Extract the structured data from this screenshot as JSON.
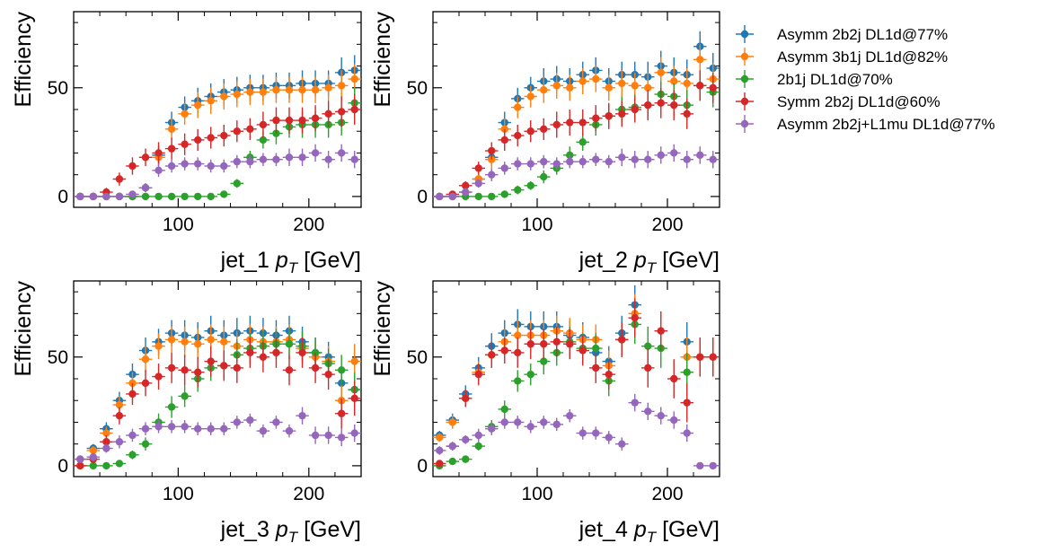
{
  "chart_data": [
    {
      "type": "scatter",
      "xlabel": "jet_1 pT [GeV]",
      "xlabel_var": "jet_1",
      "xlabel_unit": "[GeV]",
      "ylabel": "Efficiency",
      "xlim": [
        20,
        240
      ],
      "ylim": [
        -5,
        85
      ],
      "xticks": [
        100,
        200
      ],
      "yticks": [
        0,
        50
      ],
      "x": [
        25,
        35,
        45,
        55,
        65,
        75,
        85,
        95,
        105,
        115,
        125,
        135,
        145,
        155,
        165,
        175,
        185,
        195,
        205,
        215,
        225,
        235
      ],
      "series": [
        {
          "name": "Asymm 2b2j DL1d@77%",
          "color": "#1f77b4",
          "values": [
            0,
            0,
            0,
            0,
            0,
            4,
            19,
            34,
            41,
            44,
            46,
            48,
            49,
            50,
            50,
            51,
            51,
            52,
            52,
            52,
            57,
            58
          ],
          "errors": [
            0,
            0,
            0,
            0,
            0,
            2,
            4,
            5,
            5,
            6,
            6,
            6,
            6,
            6,
            6,
            6,
            6,
            6,
            6,
            6,
            7,
            7
          ]
        },
        {
          "name": "Asymm 3b1j DL1d@82%",
          "color": "#ff7f0e",
          "values": [
            0,
            0,
            0,
            0,
            0,
            4,
            18,
            31,
            38,
            42,
            44,
            46,
            47,
            48,
            48,
            49,
            49,
            49,
            49,
            50,
            51,
            54
          ],
          "errors": [
            0,
            0,
            0,
            0,
            0,
            2,
            4,
            5,
            5,
            6,
            6,
            6,
            6,
            6,
            6,
            6,
            6,
            6,
            6,
            6,
            7,
            7
          ]
        },
        {
          "name": "2b1j DL1d@70%",
          "color": "#2ca02c",
          "values": [
            0,
            0,
            0,
            0,
            0,
            0,
            0,
            0,
            0,
            0,
            0,
            1,
            6,
            18,
            26,
            29,
            32,
            33,
            33,
            33,
            34,
            43
          ],
          "errors": [
            0,
            0,
            0,
            0,
            0,
            0,
            0,
            0,
            0,
            0,
            0,
            1,
            2,
            3,
            4,
            5,
            5,
            6,
            6,
            6,
            6,
            7
          ]
        },
        {
          "name": "Symm 2b2j DL1d@60%",
          "color": "#d62728",
          "values": [
            0,
            0,
            2,
            8,
            14,
            18,
            20,
            22,
            24,
            26,
            27,
            28,
            30,
            31,
            33,
            35,
            35,
            35,
            36,
            38,
            39,
            40
          ],
          "errors": [
            0,
            0,
            2,
            3,
            4,
            4,
            5,
            5,
            5,
            5,
            5,
            5,
            5,
            5,
            6,
            6,
            6,
            6,
            6,
            6,
            7,
            7
          ]
        },
        {
          "name": "Asymm 2b2j+L1mu DL1d@77%",
          "color": "#9467bd",
          "values": [
            0,
            0,
            0,
            0,
            1,
            4,
            12,
            14,
            15,
            15,
            14,
            14,
            16,
            16,
            17,
            17,
            18,
            18,
            20,
            17,
            20,
            17
          ],
          "errors": [
            0,
            0,
            0,
            0,
            1,
            2,
            3,
            3,
            3,
            3,
            3,
            3,
            3,
            3,
            3,
            3,
            4,
            4,
            4,
            4,
            4,
            4
          ]
        }
      ]
    },
    {
      "type": "scatter",
      "xlabel": "jet_2 pT [GeV]",
      "xlabel_var": "jet_2",
      "xlabel_unit": "[GeV]",
      "ylabel": "Efficiency",
      "xlim": [
        20,
        240
      ],
      "ylim": [
        -5,
        85
      ],
      "xticks": [
        100,
        200
      ],
      "yticks": [
        0,
        50
      ],
      "x": [
        25,
        35,
        45,
        55,
        65,
        75,
        85,
        95,
        105,
        115,
        125,
        135,
        145,
        155,
        165,
        175,
        185,
        195,
        205,
        215,
        225,
        235
      ],
      "series": [
        {
          "name": "Asymm 2b2j DL1d@77%",
          "color": "#1f77b4",
          "values": [
            0,
            0,
            2,
            8,
            18,
            34,
            45,
            50,
            53,
            54,
            53,
            56,
            58,
            53,
            56,
            56,
            55,
            60,
            57,
            56,
            69,
            59
          ],
          "errors": [
            0,
            1,
            2,
            3,
            4,
            5,
            5,
            5,
            6,
            6,
            6,
            6,
            6,
            6,
            6,
            6,
            7,
            7,
            7,
            7,
            7,
            7
          ]
        },
        {
          "name": "Asymm 3b1j DL1d@82%",
          "color": "#ff7f0e",
          "values": [
            0,
            0,
            2,
            8,
            17,
            31,
            41,
            46,
            49,
            51,
            50,
            53,
            54,
            50,
            52,
            51,
            50,
            57,
            53,
            52,
            63,
            54
          ],
          "errors": [
            0,
            1,
            2,
            3,
            4,
            5,
            5,
            5,
            6,
            6,
            6,
            6,
            6,
            6,
            6,
            6,
            7,
            7,
            7,
            7,
            7,
            7
          ]
        },
        {
          "name": "2b1j DL1d@70%",
          "color": "#2ca02c",
          "values": [
            0,
            0,
            0,
            0,
            0,
            1,
            3,
            5,
            9,
            13,
            19,
            25,
            33,
            37,
            40,
            41,
            42,
            47,
            46,
            42,
            51,
            48
          ],
          "errors": [
            0,
            0,
            0,
            0,
            1,
            1,
            2,
            2,
            3,
            3,
            4,
            4,
            5,
            5,
            6,
            6,
            6,
            6,
            6,
            7,
            7,
            7
          ]
        },
        {
          "name": "Symm 2b2j DL1d@60%",
          "color": "#d62728",
          "values": [
            0,
            1,
            5,
            13,
            21,
            26,
            28,
            30,
            31,
            33,
            34,
            34,
            36,
            37,
            38,
            40,
            42,
            43,
            42,
            38,
            51,
            50
          ],
          "errors": [
            0,
            1,
            2,
            3,
            4,
            5,
            5,
            5,
            5,
            6,
            6,
            6,
            6,
            6,
            6,
            6,
            7,
            7,
            7,
            7,
            7,
            7
          ]
        },
        {
          "name": "Asymm 2b2j+L1mu DL1d@77%",
          "color": "#9467bd",
          "values": [
            0,
            0,
            2,
            6,
            10,
            13,
            15,
            15,
            16,
            15,
            16,
            16,
            17,
            16,
            18,
            17,
            17,
            19,
            20,
            17,
            19,
            17
          ],
          "errors": [
            0,
            1,
            2,
            2,
            3,
            3,
            3,
            3,
            3,
            3,
            3,
            3,
            3,
            3,
            4,
            4,
            4,
            4,
            4,
            4,
            4,
            4
          ]
        }
      ]
    },
    {
      "type": "scatter",
      "xlabel": "jet_3 pT [GeV]",
      "xlabel_var": "jet_3",
      "xlabel_unit": "[GeV]",
      "ylabel": "Efficiency",
      "xlim": [
        20,
        240
      ],
      "ylim": [
        -5,
        85
      ],
      "xticks": [
        100,
        200
      ],
      "yticks": [
        0,
        50
      ],
      "x": [
        25,
        35,
        45,
        55,
        65,
        75,
        85,
        95,
        105,
        115,
        125,
        135,
        145,
        155,
        165,
        175,
        185,
        195,
        205,
        215,
        225,
        235
      ],
      "series": [
        {
          "name": "Asymm 2b2j DL1d@77%",
          "color": "#1f77b4",
          "values": [
            3,
            8,
            17,
            30,
            42,
            53,
            57,
            61,
            60,
            59,
            62,
            60,
            61,
            62,
            61,
            60,
            62,
            57,
            52,
            50,
            38,
            35
          ],
          "errors": [
            1,
            2,
            3,
            4,
            5,
            6,
            6,
            6,
            7,
            7,
            7,
            7,
            7,
            7,
            7,
            7,
            7,
            7,
            7,
            7,
            7,
            8
          ]
        },
        {
          "name": "Asymm 3b1j DL1d@82%",
          "color": "#ff7f0e",
          "values": [
            3,
            7,
            15,
            28,
            38,
            49,
            55,
            58,
            57,
            56,
            58,
            57,
            55,
            58,
            57,
            57,
            58,
            54,
            50,
            48,
            30,
            48
          ],
          "errors": [
            1,
            2,
            3,
            4,
            5,
            6,
            6,
            6,
            7,
            7,
            7,
            7,
            7,
            7,
            7,
            7,
            7,
            7,
            7,
            7,
            7,
            8
          ]
        },
        {
          "name": "2b1j DL1d@70%",
          "color": "#2ca02c",
          "values": [
            0,
            0,
            0,
            1,
            5,
            10,
            20,
            27,
            32,
            40,
            45,
            46,
            51,
            54,
            55,
            56,
            56,
            55,
            52,
            47,
            44,
            35
          ],
          "errors": [
            0,
            0,
            0,
            1,
            2,
            3,
            4,
            5,
            5,
            6,
            6,
            6,
            7,
            7,
            7,
            7,
            7,
            7,
            7,
            7,
            7,
            8
          ]
        },
        {
          "name": "Symm 2b2j DL1d@60%",
          "color": "#d62728",
          "values": [
            0,
            3,
            11,
            23,
            33,
            38,
            41,
            45,
            44,
            43,
            48,
            46,
            45,
            52,
            50,
            52,
            44,
            52,
            45,
            42,
            24,
            31
          ],
          "errors": [
            1,
            2,
            3,
            4,
            5,
            6,
            6,
            7,
            7,
            7,
            7,
            7,
            7,
            7,
            7,
            7,
            7,
            7,
            7,
            7,
            7,
            8
          ]
        },
        {
          "name": "Asymm 2b2j+L1mu DL1d@77%",
          "color": "#9467bd",
          "values": [
            3,
            4,
            8,
            11,
            14,
            17,
            18,
            18,
            18,
            17,
            17,
            17,
            20,
            21,
            16,
            20,
            16,
            23,
            14,
            14,
            13,
            15
          ],
          "errors": [
            1,
            2,
            2,
            3,
            3,
            3,
            3,
            3,
            3,
            3,
            3,
            3,
            3,
            3,
            3,
            3,
            3,
            4,
            4,
            4,
            4,
            4
          ]
        }
      ]
    },
    {
      "type": "scatter",
      "xlabel": "jet_4 pT [GeV]",
      "xlabel_var": "jet_4",
      "xlabel_unit": "[GeV]",
      "ylabel": "Efficiency",
      "xlim": [
        20,
        240
      ],
      "ylim": [
        -5,
        85
      ],
      "xticks": [
        100,
        200
      ],
      "yticks": [
        0,
        50
      ],
      "x": [
        25,
        35,
        45,
        55,
        65,
        75,
        85,
        95,
        105,
        115,
        125,
        135,
        145,
        155,
        165,
        175,
        185,
        195,
        205,
        215,
        225,
        235
      ],
      "series": [
        {
          "name": "Asymm 2b2j DL1d@77%",
          "color": "#1f77b4",
          "values": [
            14,
            21,
            33,
            45,
            55,
            61,
            65,
            64,
            64,
            64,
            60,
            59,
            52,
            48,
            61,
            74,
            null,
            null,
            null,
            57,
            null,
            null
          ],
          "errors": [
            2,
            3,
            4,
            5,
            6,
            6,
            7,
            7,
            7,
            7,
            7,
            7,
            7,
            7,
            8,
            9,
            0,
            0,
            0,
            9,
            0,
            0
          ]
        },
        {
          "name": "Asymm 3b1j DL1d@82%",
          "color": "#ff7f0e",
          "values": [
            13,
            20,
            31,
            43,
            51,
            57,
            60,
            60,
            60,
            62,
            61,
            58,
            58,
            46,
            58,
            70,
            null,
            null,
            null,
            50,
            50,
            50
          ],
          "errors": [
            2,
            3,
            4,
            5,
            6,
            6,
            7,
            7,
            7,
            7,
            7,
            7,
            7,
            7,
            8,
            9,
            0,
            0,
            0,
            9,
            9,
            9
          ]
        },
        {
          "name": "2b1j DL1d@70%",
          "color": "#2ca02c",
          "values": [
            0,
            2,
            3,
            9,
            18,
            26,
            39,
            42,
            48,
            52,
            57,
            54,
            54,
            39,
            58,
            65,
            55,
            54,
            null,
            43,
            null,
            null
          ],
          "errors": [
            0,
            1,
            1,
            2,
            3,
            4,
            5,
            5,
            6,
            6,
            7,
            7,
            7,
            7,
            8,
            9,
            9,
            9,
            0,
            9,
            0,
            0
          ]
        },
        {
          "name": "Symm 2b2j DL1d@60%",
          "color": "#d62728",
          "values": [
            1,
            9,
            31,
            42,
            51,
            53,
            52,
            56,
            56,
            57,
            56,
            53,
            45,
            42,
            58,
            68,
            45,
            62,
            40,
            29,
            50,
            50
          ],
          "errors": [
            1,
            2,
            4,
            5,
            6,
            6,
            7,
            7,
            7,
            7,
            7,
            7,
            7,
            7,
            8,
            9,
            9,
            9,
            9,
            9,
            9,
            9
          ]
        },
        {
          "name": "Asymm 2b2j+L1mu DL1d@77%",
          "color": "#9467bd",
          "values": [
            7,
            9,
            12,
            14,
            17,
            20,
            20,
            18,
            20,
            19,
            23,
            15,
            15,
            13,
            10,
            29,
            25,
            23,
            21,
            15,
            0,
            0
          ],
          "errors": [
            2,
            2,
            2,
            3,
            3,
            3,
            3,
            3,
            3,
            3,
            3,
            3,
            3,
            3,
            3,
            4,
            4,
            4,
            4,
            4,
            0,
            0
          ]
        }
      ]
    }
  ],
  "legend": {
    "placement": "right",
    "entries": [
      {
        "label": "Asymm 2b2j DL1d@77%",
        "color": "#1f77b4"
      },
      {
        "label": "Asymm 3b1j DL1d@82%",
        "color": "#ff7f0e"
      },
      {
        "label": "2b1j DL1d@70%",
        "color": "#2ca02c"
      },
      {
        "label": "Symm 2b2j DL1d@60%",
        "color": "#d62728"
      },
      {
        "label": "Asymm 2b2j+L1mu DL1d@77%",
        "color": "#9467bd"
      }
    ]
  }
}
